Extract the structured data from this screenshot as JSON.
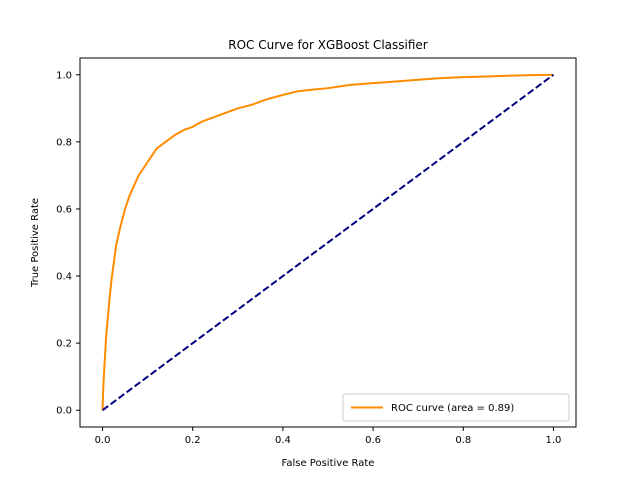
{
  "chart_data": {
    "type": "line",
    "title": "ROC Curve for XGBoost Classifier",
    "xlabel": "False Positive Rate",
    "ylabel": "True Positive Rate",
    "xlim": [
      -0.05,
      1.05
    ],
    "ylim": [
      -0.05,
      1.05
    ],
    "xticks": [
      "0.0",
      "0.2",
      "0.4",
      "0.6",
      "0.8",
      "1.0"
    ],
    "yticks": [
      "0.0",
      "0.2",
      "0.4",
      "0.6",
      "0.8",
      "1.0"
    ],
    "grid": false,
    "legend_position": "lower-right",
    "series": [
      {
        "name": "ROC curve (area = 0.89)",
        "color": "#ff8c00",
        "style": "solid",
        "x": [
          0.0,
          0.002,
          0.005,
          0.008,
          0.012,
          0.016,
          0.02,
          0.025,
          0.03,
          0.035,
          0.04,
          0.05,
          0.06,
          0.07,
          0.08,
          0.09,
          0.1,
          0.11,
          0.12,
          0.14,
          0.16,
          0.18,
          0.2,
          0.22,
          0.25,
          0.28,
          0.3,
          0.33,
          0.36,
          0.4,
          0.43,
          0.46,
          0.5,
          0.55,
          0.6,
          0.65,
          0.7,
          0.75,
          0.8,
          0.85,
          0.9,
          0.95,
          1.0
        ],
        "y": [
          0.0,
          0.08,
          0.15,
          0.22,
          0.28,
          0.34,
          0.39,
          0.44,
          0.49,
          0.52,
          0.55,
          0.6,
          0.64,
          0.67,
          0.7,
          0.72,
          0.74,
          0.76,
          0.78,
          0.8,
          0.82,
          0.835,
          0.845,
          0.86,
          0.875,
          0.89,
          0.9,
          0.91,
          0.925,
          0.94,
          0.95,
          0.955,
          0.96,
          0.97,
          0.975,
          0.98,
          0.985,
          0.99,
          0.993,
          0.995,
          0.997,
          0.999,
          1.0
        ]
      },
      {
        "name": "",
        "color": "#000080",
        "style": "dashed",
        "x": [
          0.0,
          1.0
        ],
        "y": [
          0.0,
          1.0
        ]
      }
    ]
  }
}
